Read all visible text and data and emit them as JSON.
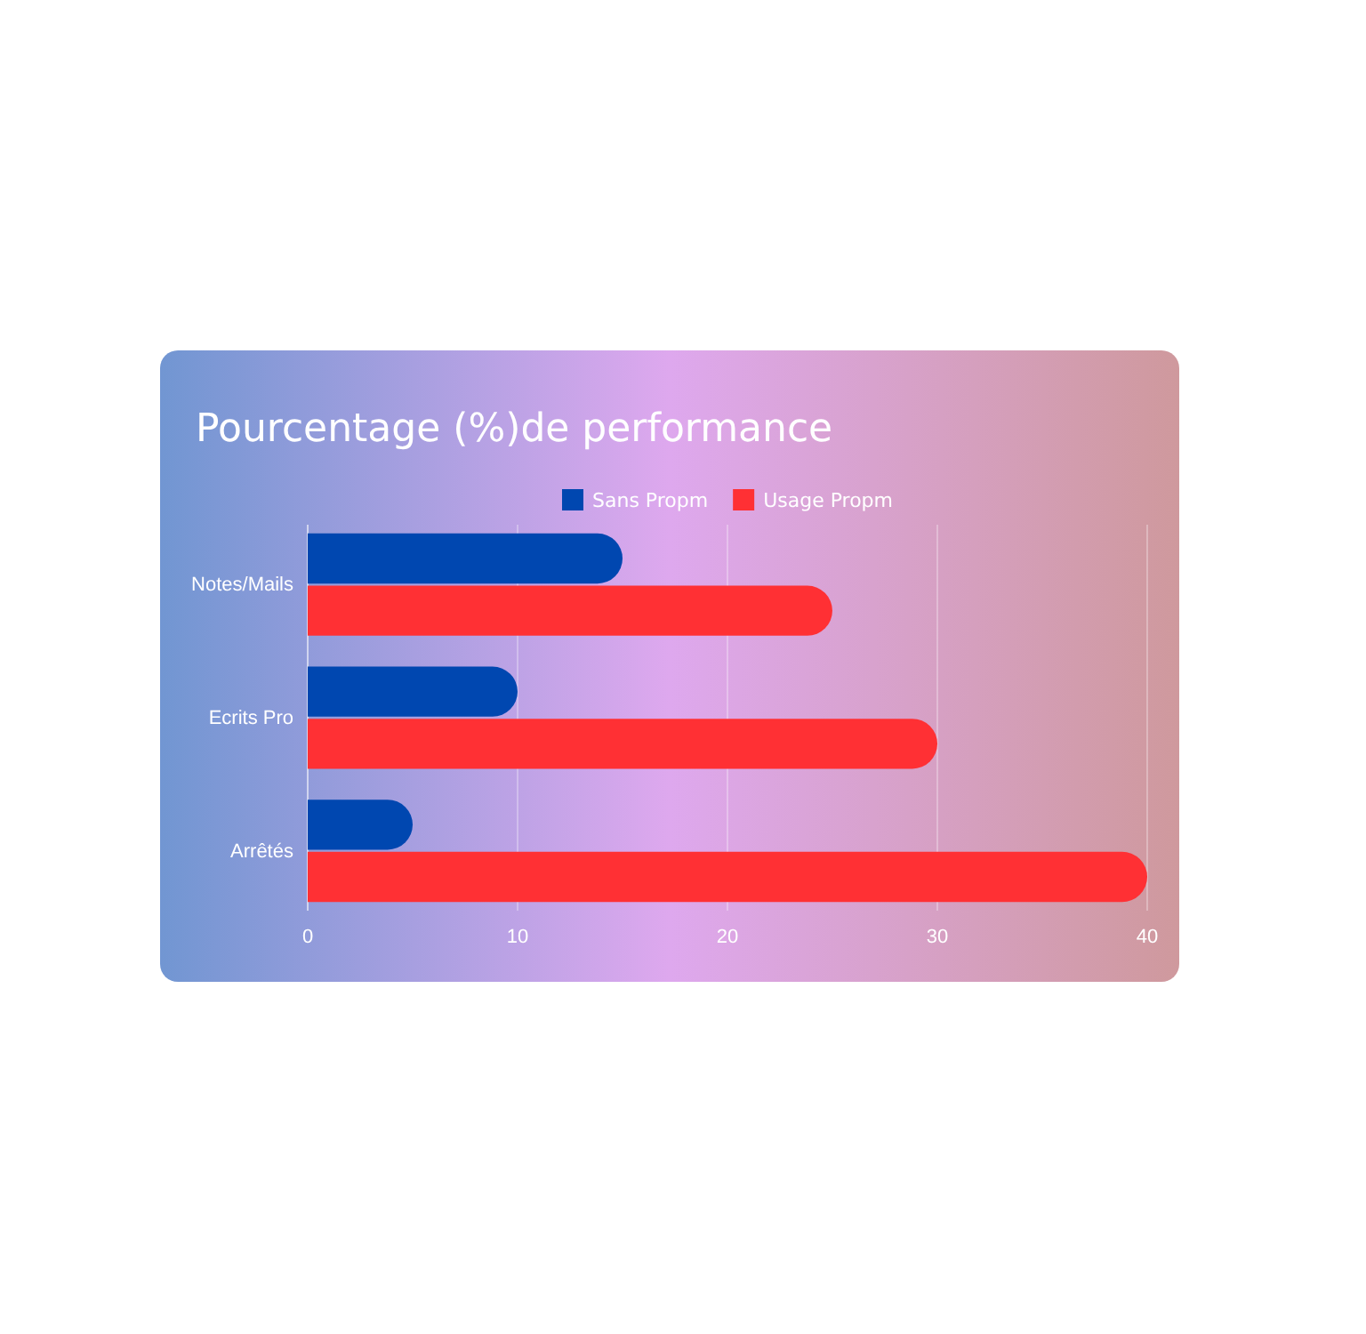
{
  "chart_data": {
    "type": "bar",
    "orientation": "horizontal",
    "title": "Pourcentage (%)de performance",
    "categories": [
      "Notes/Mails",
      "Ecrits Pro",
      "Arrêtés"
    ],
    "series": [
      {
        "name": "Sans Propm",
        "color": "#0047b0",
        "values": [
          15,
          10,
          5
        ]
      },
      {
        "name": "Usage Propm",
        "color": "#ff3034",
        "values": [
          25,
          30,
          40
        ]
      }
    ],
    "xlim": [
      0,
      40
    ],
    "xticks": [
      0,
      10,
      20,
      30,
      40
    ],
    "grid": "x",
    "legend": "top"
  }
}
